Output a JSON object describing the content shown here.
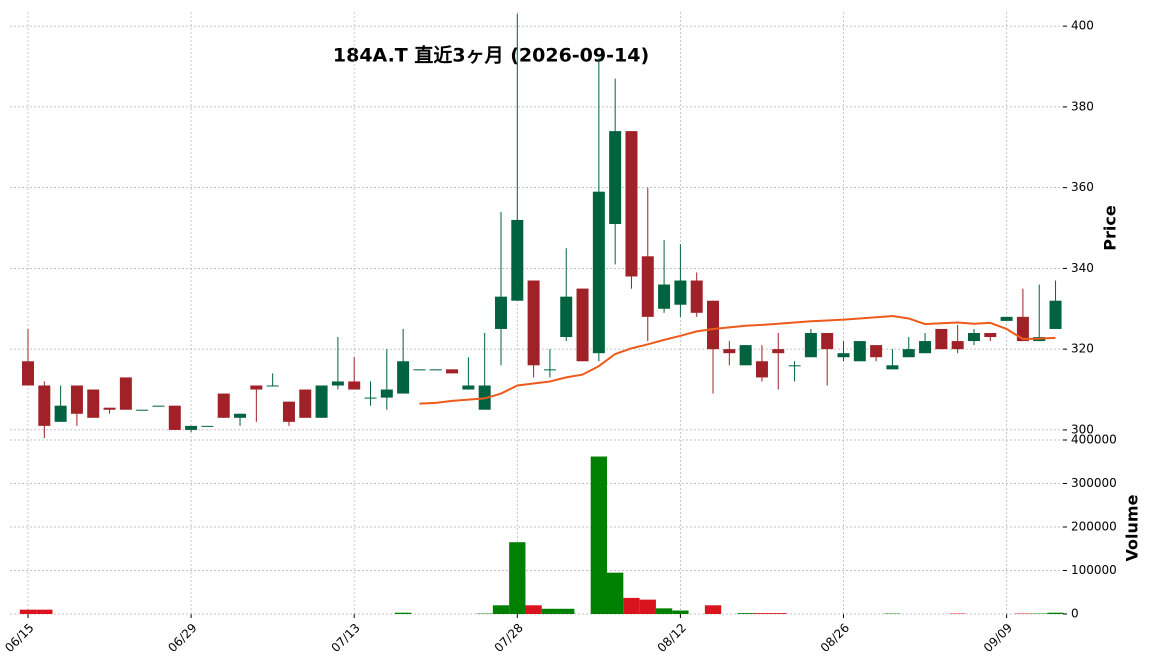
{
  "chart_data": [
    {
      "type": "candlestick",
      "title": "184A.T  直近3ヶ月  (2026-09-14)",
      "ylabel": "Price",
      "categories": [
        "06/15",
        null,
        null,
        null,
        null,
        null,
        null,
        null,
        null,
        null,
        "06/29",
        null,
        null,
        null,
        null,
        null,
        null,
        null,
        null,
        null,
        "07/13",
        null,
        null,
        null,
        null,
        null,
        null,
        null,
        null,
        null,
        "07/28",
        null,
        null,
        null,
        null,
        null,
        null,
        null,
        null,
        null,
        "08/12",
        null,
        null,
        null,
        null,
        null,
        null,
        null,
        null,
        null,
        "08/26",
        null,
        null,
        null,
        null,
        null,
        null,
        null,
        null,
        null,
        "09/09",
        null,
        null,
        null
      ],
      "open": [
        317,
        311,
        302,
        311,
        310,
        305.5,
        313,
        305,
        306,
        306,
        300,
        301,
        309,
        303,
        311,
        311,
        307,
        310,
        303,
        311,
        312,
        308,
        308,
        309,
        315,
        315,
        315,
        310,
        305,
        325,
        332,
        337,
        315,
        323,
        335,
        319,
        351,
        374,
        343,
        330,
        331,
        337,
        332,
        320,
        316,
        317,
        320,
        316,
        318,
        324,
        318,
        317,
        321,
        315,
        318,
        319,
        325,
        322,
        322,
        324,
        327,
        328,
        322,
        325
      ],
      "high": [
        325,
        312,
        311,
        311,
        310,
        305.5,
        313,
        305,
        306,
        306,
        301,
        301,
        309,
        304,
        311,
        314,
        307,
        310,
        311,
        323,
        318,
        312,
        320,
        325,
        315,
        315,
        315,
        318,
        324,
        354,
        403,
        337,
        320,
        345,
        335,
        392,
        387,
        374,
        360,
        347,
        346,
        339,
        332,
        322,
        321,
        321,
        324,
        317,
        325,
        324,
        322,
        322,
        321,
        320,
        323,
        324,
        325,
        326,
        325,
        324,
        328,
        335,
        336,
        337
      ],
      "low": [
        311,
        298,
        302,
        301,
        303,
        304,
        305,
        305,
        306,
        300,
        299.5,
        301,
        303,
        301,
        302,
        311,
        301,
        303,
        303,
        310,
        310,
        306,
        305,
        309,
        315,
        315,
        314,
        310,
        305,
        316,
        332,
        313,
        313,
        322,
        317,
        317,
        341,
        335,
        322,
        329,
        328,
        328,
        309,
        316,
        316,
        312,
        310,
        312,
        318,
        311,
        317,
        317,
        317,
        315,
        318,
        319,
        320,
        319,
        321,
        322,
        327,
        322,
        322,
        325
      ],
      "close": [
        311,
        301,
        306,
        304,
        303,
        305,
        305,
        305,
        306,
        300,
        301,
        301,
        303,
        304,
        310,
        311,
        302,
        303,
        311,
        312,
        310,
        308,
        310,
        317,
        315,
        315,
        314,
        311,
        311,
        333,
        352,
        316,
        315,
        333,
        317,
        359,
        374,
        338,
        328,
        336,
        337,
        329,
        320,
        319,
        321,
        313,
        319,
        316,
        324,
        320,
        319,
        322,
        318,
        316,
        320,
        322,
        320,
        320,
        324,
        323,
        328,
        322,
        323,
        332
      ],
      "up_color": "#006340",
      "down_color": "#a02128",
      "ma": {
        "color": "#ee5a1a",
        "values": [
          null,
          null,
          null,
          null,
          null,
          null,
          null,
          null,
          null,
          null,
          null,
          null,
          null,
          null,
          null,
          null,
          null,
          null,
          null,
          null,
          null,
          null,
          null,
          null,
          306.5,
          306.7,
          307.2,
          307.5,
          307.8,
          309,
          311,
          311.5,
          312,
          313,
          313.7,
          315.8,
          318.8,
          320.2,
          321.2,
          322.3,
          323.3,
          324.4,
          325,
          325.4,
          325.8,
          326,
          326.3,
          326.6,
          326.9,
          327.1,
          327.3,
          327.6,
          327.9,
          328.2,
          327.6,
          326.2,
          326.4,
          326.6,
          326.3,
          326.5,
          325,
          322.5,
          322.6,
          322.8
        ]
      },
      "ylim": [
        297.5,
        403.5
      ],
      "yticks": [
        300,
        320,
        340,
        360,
        380,
        400
      ],
      "grid": true
    },
    {
      "type": "volume",
      "ylabel": "Volume",
      "values": [
        10000,
        10000,
        0,
        0,
        0,
        0,
        0,
        0,
        0,
        0,
        0,
        0,
        0,
        0,
        0,
        0,
        0,
        0,
        0,
        0,
        0,
        0,
        0,
        3000,
        0,
        0,
        0,
        0,
        1000,
        20000,
        165000,
        20000,
        12000,
        12000,
        0,
        362000,
        95000,
        37000,
        33000,
        13000,
        8000,
        0,
        20000,
        0,
        2000,
        2000,
        2000,
        0,
        0,
        0,
        0,
        0,
        0,
        1000,
        0,
        0,
        0,
        1000,
        0,
        0,
        0,
        1000,
        1000,
        3000
      ],
      "up_color": "#008000",
      "down_color": "#d9141f",
      "ylim": [
        0,
        400000
      ],
      "yticks": [
        0,
        100000,
        200000,
        300000,
        400000
      ],
      "grid": true
    }
  ]
}
